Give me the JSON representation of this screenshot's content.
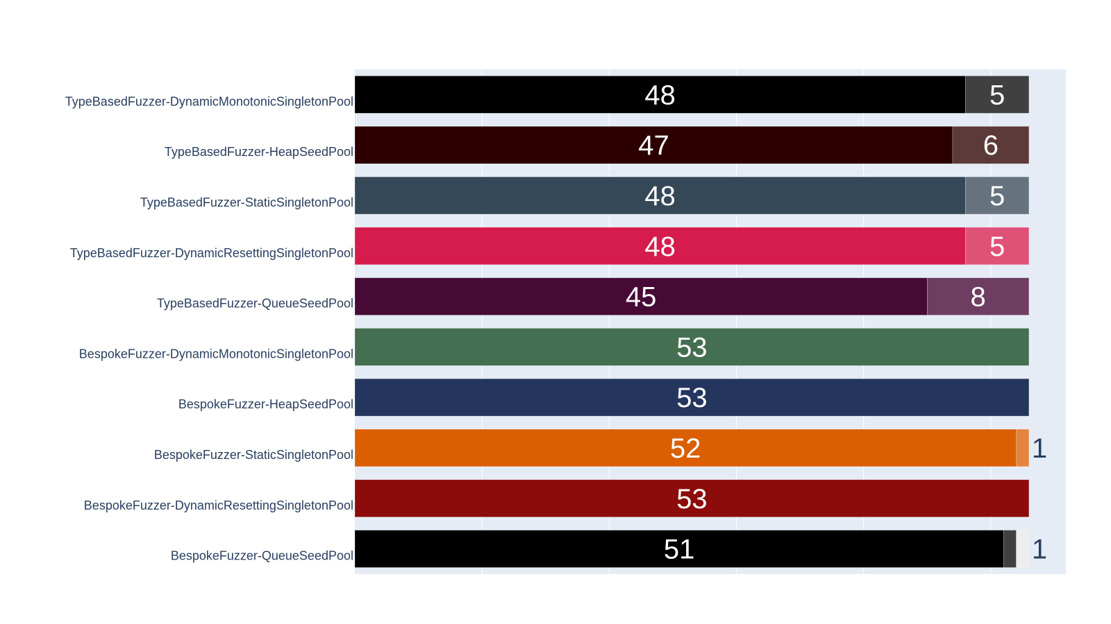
{
  "chart_data": {
    "type": "bar",
    "orientation": "horizontal",
    "barmode": "stack",
    "categories": [
      "TypeBasedFuzzer-DynamicMonotonicSingletonPool",
      "TypeBasedFuzzer-HeapSeedPool",
      "TypeBasedFuzzer-StaticSingletonPool",
      "TypeBasedFuzzer-DynamicResettingSingletonPool",
      "TypeBasedFuzzer-QueueSeedPool",
      "BespokeFuzzer-DynamicMonotonicSingletonPool",
      "BespokeFuzzer-HeapSeedPool",
      "BespokeFuzzer-StaticSingletonPool",
      "BespokeFuzzer-DynamicResettingSingletonPool",
      "BespokeFuzzer-QueueSeedPool"
    ],
    "rows": [
      {
        "segments": [
          {
            "value": 48,
            "label": "48",
            "color": "#000000"
          },
          {
            "value": 5,
            "label": "5",
            "color": "#404040"
          }
        ]
      },
      {
        "segments": [
          {
            "value": 47,
            "label": "47",
            "color": "#2d0000"
          },
          {
            "value": 6,
            "label": "6",
            "color": "#5c3a3a"
          }
        ]
      },
      {
        "segments": [
          {
            "value": 48,
            "label": "48",
            "color": "#354858"
          },
          {
            "value": 5,
            "label": "5",
            "color": "#66737f"
          }
        ]
      },
      {
        "segments": [
          {
            "value": 48,
            "label": "48",
            "color": "#d61c4e"
          },
          {
            "value": 5,
            "label": "5",
            "color": "#e05178"
          }
        ]
      },
      {
        "segments": [
          {
            "value": 45,
            "label": "45",
            "color": "#470a37"
          },
          {
            "value": 8,
            "label": "8",
            "color": "#6e3e62"
          }
        ]
      },
      {
        "segments": [
          {
            "value": 53,
            "label": "53",
            "color": "#446f50"
          }
        ]
      },
      {
        "segments": [
          {
            "value": 53,
            "label": "53",
            "color": "#24355e"
          }
        ]
      },
      {
        "segments": [
          {
            "value": 52,
            "label": "52",
            "color": "#db5f00"
          },
          {
            "value": 1,
            "label": "1",
            "color": "#e38540"
          }
        ]
      },
      {
        "segments": [
          {
            "value": 53,
            "label": "53",
            "color": "#8c0c0c"
          }
        ]
      },
      {
        "segments": [
          {
            "value": 51,
            "label": "51",
            "color": "#000000"
          },
          {
            "value": 1,
            "label": "",
            "color": "#404040"
          },
          {
            "value": 1,
            "label": "1",
            "color": "#ededed"
          }
        ]
      }
    ],
    "xlim": [
      0,
      55.9
    ],
    "grid": true,
    "plot_background": "#e5ecf6",
    "gridline_color": "#ffffff",
    "category_label_color": "#2a3f5f",
    "inside_label_color": "#ffffff",
    "outside_label_color": "#2a3f5f"
  }
}
